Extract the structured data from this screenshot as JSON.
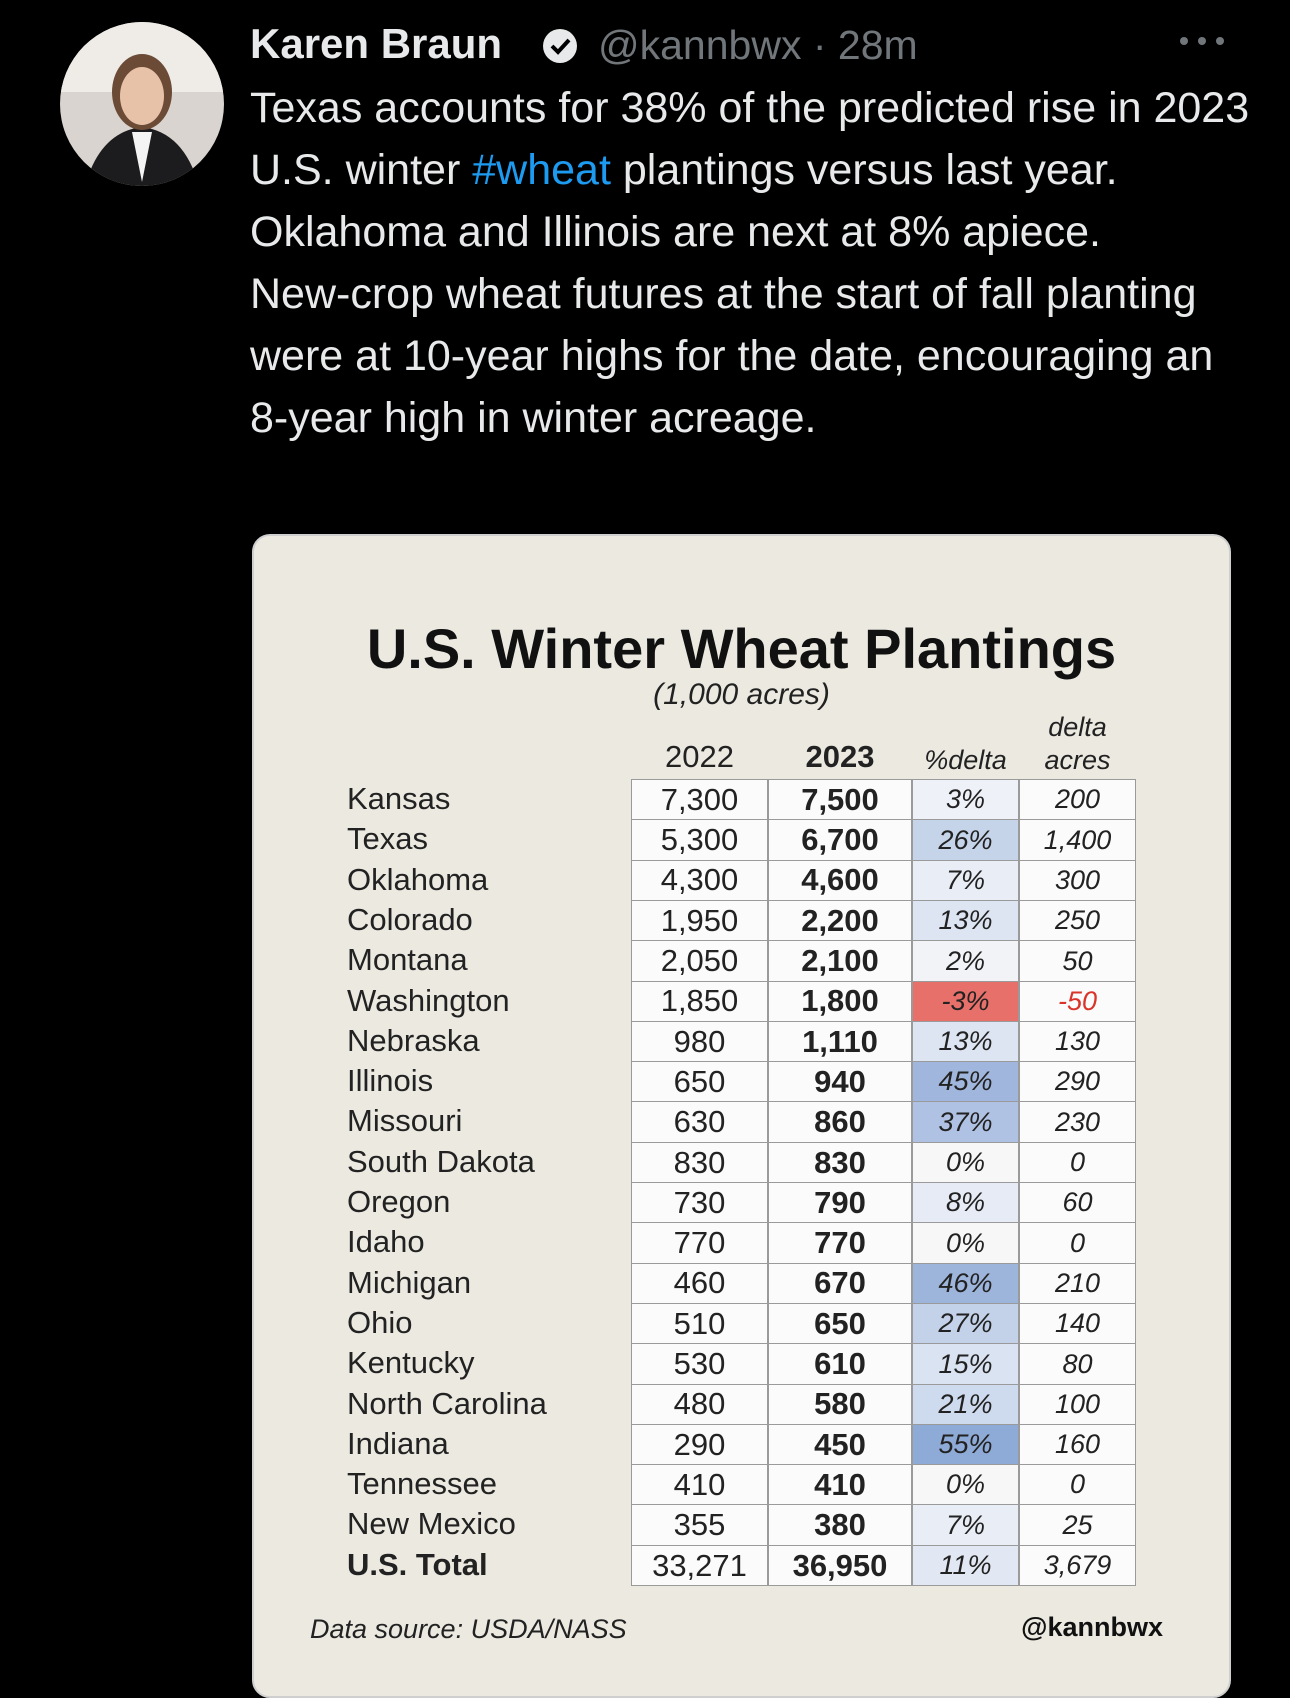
{
  "tweet": {
    "author": "Karen Braun",
    "handle": "@kannbwx",
    "time": "· 28m",
    "text": {
      "before": "Texas accounts for 38% of the predicted rise in 2023 U.S. winter ",
      "hashtag": "#wheat",
      "after": " plantings versus last year. Oklahoma and Illinois are next at 8% apiece.",
      "paragraph2": "New-crop wheat futures at the start of fall planting were at 10-year highs for the date, encouraging an 8-year high in winter acreage."
    }
  },
  "table": {
    "title": "U.S. Winter Wheat Plantings",
    "subtitle": "(1,000 acres)",
    "headers": {
      "y2022": "2022",
      "y2023": "2023",
      "pct": "%delta",
      "delta_top": "delta",
      "delta_bottom": "acres"
    },
    "rows": [
      {
        "state": "Kansas",
        "y2022": "7,300",
        "y2023": "7,500",
        "pct": "3%",
        "delta": "200",
        "pct_color": "#eef1f7"
      },
      {
        "state": "Texas",
        "y2022": "5,300",
        "y2023": "6,700",
        "pct": "26%",
        "delta": "1,400",
        "pct_color": "#c6d4ea"
      },
      {
        "state": "Oklahoma",
        "y2022": "4,300",
        "y2023": "4,600",
        "pct": "7%",
        "delta": "300",
        "pct_color": "#e8edf6"
      },
      {
        "state": "Colorado",
        "y2022": "1,950",
        "y2023": "2,200",
        "pct": "13%",
        "delta": "250",
        "pct_color": "#dde5f2"
      },
      {
        "state": "Montana",
        "y2022": "2,050",
        "y2023": "2,100",
        "pct": "2%",
        "delta": "50",
        "pct_color": "#f1f3f7"
      },
      {
        "state": "Washington",
        "y2022": "1,850",
        "y2023": "1,800",
        "pct": "-3%",
        "delta": "-50",
        "pct_color": "#e8706a",
        "delta_color": "#d9352a"
      },
      {
        "state": "Nebraska",
        "y2022": "980",
        "y2023": "1,110",
        "pct": "13%",
        "delta": "130",
        "pct_color": "#dde5f2"
      },
      {
        "state": "Illinois",
        "y2022": "650",
        "y2023": "940",
        "pct": "45%",
        "delta": "290",
        "pct_color": "#a0b6dc"
      },
      {
        "state": "Missouri",
        "y2022": "630",
        "y2023": "860",
        "pct": "37%",
        "delta": "230",
        "pct_color": "#afc2e3"
      },
      {
        "state": "South Dakota",
        "y2022": "830",
        "y2023": "830",
        "pct": "0%",
        "delta": "0",
        "pct_color": "#f7f7f7"
      },
      {
        "state": "Oregon",
        "y2022": "730",
        "y2023": "790",
        "pct": "8%",
        "delta": "60",
        "pct_color": "#e6ebf5"
      },
      {
        "state": "Idaho",
        "y2022": "770",
        "y2023": "770",
        "pct": "0%",
        "delta": "0",
        "pct_color": "#f7f7f7"
      },
      {
        "state": "Michigan",
        "y2022": "460",
        "y2023": "670",
        "pct": "46%",
        "delta": "210",
        "pct_color": "#9db4db"
      },
      {
        "state": "Ohio",
        "y2022": "510",
        "y2023": "650",
        "pct": "27%",
        "delta": "140",
        "pct_color": "#c4d2e9"
      },
      {
        "state": "Kentucky",
        "y2022": "530",
        "y2023": "610",
        "pct": "15%",
        "delta": "80",
        "pct_color": "#dae3f1"
      },
      {
        "state": "North Carolina",
        "y2022": "480",
        "y2023": "580",
        "pct": "21%",
        "delta": "100",
        "pct_color": "#cedaee"
      },
      {
        "state": "Indiana",
        "y2022": "290",
        "y2023": "450",
        "pct": "55%",
        "delta": "160",
        "pct_color": "#8eaad7"
      },
      {
        "state": "Tennessee",
        "y2022": "410",
        "y2023": "410",
        "pct": "0%",
        "delta": "0",
        "pct_color": "#f7f7f7"
      },
      {
        "state": "New Mexico",
        "y2022": "355",
        "y2023": "380",
        "pct": "7%",
        "delta": "25",
        "pct_color": "#e8edf6"
      },
      {
        "state": "U.S. Total",
        "y2022": "33,271",
        "y2023": "36,950",
        "pct": "11%",
        "delta": "3,679",
        "pct_color": "#e2e8f3"
      }
    ],
    "source": "Data source: USDA/NASS",
    "credit": "@kannbwx"
  }
}
